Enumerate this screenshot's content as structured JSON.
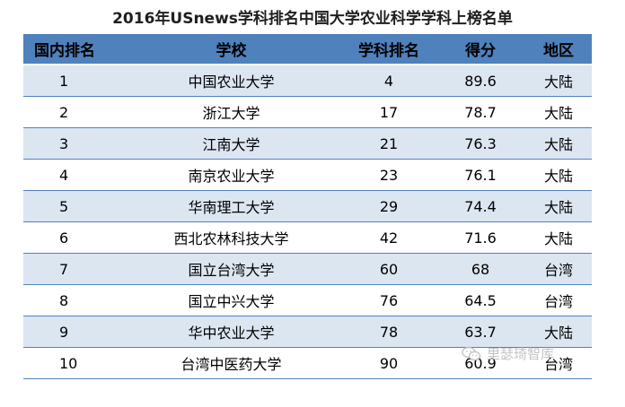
{
  "title": "2016年USnews学科排名中国大学农业科学学科上榜名单",
  "headers": {
    "rank": "国内排名",
    "school": "学校",
    "subject_rank": "学科排名",
    "score": "得分",
    "region": "地区"
  },
  "rows": [
    {
      "rank": "1",
      "school": "中国农业大学",
      "subject_rank": "4",
      "score": "89.6",
      "region": "大陆"
    },
    {
      "rank": "2",
      "school": "浙江大学",
      "subject_rank": "17",
      "score": "78.7",
      "region": "大陆"
    },
    {
      "rank": "3",
      "school": "江南大学",
      "subject_rank": "21",
      "score": "76.3",
      "region": "大陆"
    },
    {
      "rank": "4",
      "school": "南京农业大学",
      "subject_rank": "23",
      "score": "76.1",
      "region": "大陆"
    },
    {
      "rank": "5",
      "school": "华南理工大学",
      "subject_rank": "29",
      "score": "74.4",
      "region": "大陆"
    },
    {
      "rank": "6",
      "school": "西北农林科技大学",
      "subject_rank": "42",
      "score": "71.6",
      "region": "大陆"
    },
    {
      "rank": "7",
      "school": "国立台湾大学",
      "subject_rank": "60",
      "score": "68",
      "region": "台湾"
    },
    {
      "rank": "8",
      "school": "国立中兴大学",
      "subject_rank": "76",
      "score": "64.5",
      "region": "台湾"
    },
    {
      "rank": "9",
      "school": "华中农业大学",
      "subject_rank": "78",
      "score": "63.7",
      "region": "大陆"
    },
    {
      "rank": "10",
      "school": "台湾中医药大学",
      "subject_rank": "90",
      "score": "60.9",
      "region": "台湾"
    }
  ],
  "watermark": {
    "text": "里瑟琦智库",
    "icon": "wechat-icon"
  },
  "colors": {
    "header_bg": "#4f81bd",
    "band_bg": "#dce6f1",
    "watermark": "#bfbfbf"
  }
}
